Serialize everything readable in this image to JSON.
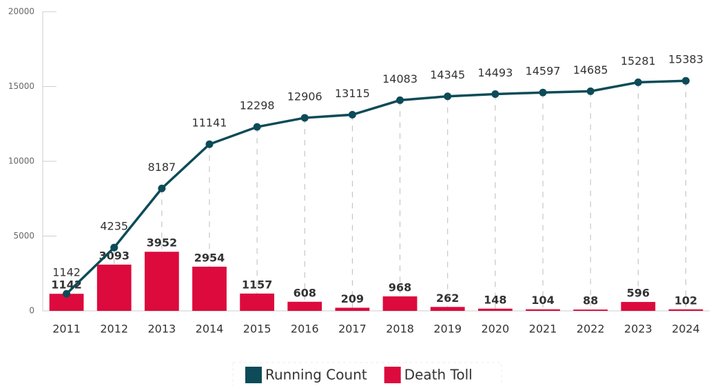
{
  "chart_data": {
    "type": "bar_line",
    "categories": [
      "2011",
      "2012",
      "2013",
      "2014",
      "2015",
      "2016",
      "2017",
      "2018",
      "2019",
      "2020",
      "2021",
      "2022",
      "2023",
      "2024"
    ],
    "series": [
      {
        "name": "Running Count",
        "type": "line",
        "color": "#0d4b58",
        "values": [
          1142,
          4235,
          8187,
          11141,
          12298,
          12906,
          13115,
          14083,
          14345,
          14493,
          14597,
          14685,
          15281,
          15383
        ]
      },
      {
        "name": "Death Toll",
        "type": "bar",
        "color": "#dc0a3d",
        "values": [
          1142,
          3093,
          3952,
          2954,
          1157,
          608,
          209,
          968,
          262,
          148,
          104,
          88,
          596,
          102
        ]
      }
    ],
    "ylim": [
      0,
      20000
    ],
    "yticks": [
      0,
      5000,
      10000,
      15000,
      20000
    ],
    "legend": "bottom"
  }
}
